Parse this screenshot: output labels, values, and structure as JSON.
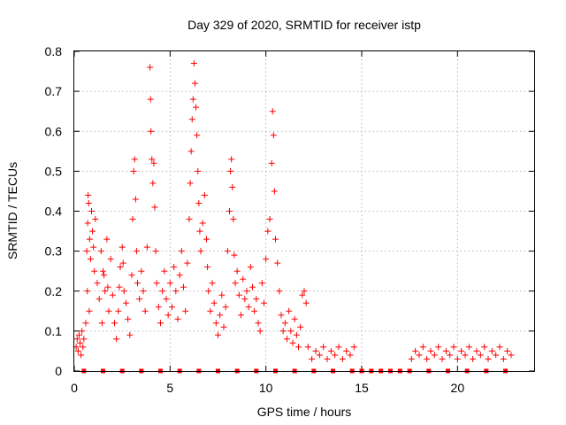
{
  "chart_data": {
    "type": "scatter",
    "title": "Day 329 of 2020, SRMTID for receiver istp",
    "xlabel": "GPS time / hours",
    "ylabel": "SRMTID / TECUs",
    "xlim": [
      0,
      24
    ],
    "ylim": [
      0,
      0.8
    ],
    "x_ticks": [
      0,
      5,
      10,
      15,
      20
    ],
    "x_tick_labels": [
      "0",
      "5",
      "10",
      "15",
      "20"
    ],
    "y_ticks": [
      0,
      0.1,
      0.2,
      0.3,
      0.4,
      0.5,
      0.6,
      0.7,
      0.8
    ],
    "y_tick_labels": [
      "0",
      "0.1",
      "0.2",
      "0.3",
      "0.4",
      "0.5",
      "0.6",
      "0.7",
      "0.8"
    ],
    "grid": true,
    "marker": "plus",
    "color": "#ff0000",
    "series": [
      {
        "name": "SRMTID",
        "points": [
          [
            0.1,
            0.06
          ],
          [
            0.15,
            0.08
          ],
          [
            0.2,
            0.05
          ],
          [
            0.25,
            0.09
          ],
          [
            0.3,
            0.07
          ],
          [
            0.35,
            0.04
          ],
          [
            0.4,
            0.1
          ],
          [
            0.45,
            0.06
          ],
          [
            0.5,
            0.08
          ],
          [
            0.6,
            0.12
          ],
          [
            0.65,
            0.3
          ],
          [
            0.7,
            0.37
          ],
          [
            0.72,
            0.44
          ],
          [
            0.75,
            0.42
          ],
          [
            0.8,
            0.33
          ],
          [
            0.85,
            0.28
          ],
          [
            0.9,
            0.4
          ],
          [
            0.95,
            0.35
          ],
          [
            1.0,
            0.31
          ],
          [
            1.05,
            0.25
          ],
          [
            1.1,
            0.38
          ],
          [
            0.68,
            0.2
          ],
          [
            0.78,
            0.15
          ],
          [
            1.2,
            0.22
          ],
          [
            1.3,
            0.18
          ],
          [
            1.4,
            0.3
          ],
          [
            1.5,
            0.25
          ],
          [
            1.6,
            0.2
          ],
          [
            1.7,
            0.33
          ],
          [
            1.8,
            0.15
          ],
          [
            1.9,
            0.28
          ],
          [
            2.0,
            0.19
          ],
          [
            1.45,
            0.12
          ],
          [
            1.55,
            0.24
          ],
          [
            1.75,
            0.21
          ],
          [
            2.1,
            0.12
          ],
          [
            2.2,
            0.08
          ],
          [
            2.3,
            0.15
          ],
          [
            2.4,
            0.26
          ],
          [
            2.5,
            0.31
          ],
          [
            2.6,
            0.2
          ],
          [
            2.7,
            0.17
          ],
          [
            2.8,
            0.13
          ],
          [
            2.9,
            0.09
          ],
          [
            2.35,
            0.21
          ],
          [
            2.55,
            0.27
          ],
          [
            3.0,
            0.24
          ],
          [
            3.05,
            0.38
          ],
          [
            3.1,
            0.5
          ],
          [
            3.15,
            0.53
          ],
          [
            3.2,
            0.43
          ],
          [
            3.25,
            0.3
          ],
          [
            3.3,
            0.22
          ],
          [
            3.4,
            0.18
          ],
          [
            3.5,
            0.25
          ],
          [
            3.6,
            0.2
          ],
          [
            3.7,
            0.15
          ],
          [
            3.8,
            0.31
          ],
          [
            3.95,
            0.76
          ],
          [
            3.98,
            0.68
          ],
          [
            4.0,
            0.6
          ],
          [
            4.05,
            0.53
          ],
          [
            4.1,
            0.47
          ],
          [
            4.15,
            0.52
          ],
          [
            4.2,
            0.41
          ],
          [
            4.25,
            0.3
          ],
          [
            4.3,
            0.22
          ],
          [
            4.4,
            0.16
          ],
          [
            4.5,
            0.12
          ],
          [
            4.6,
            0.2
          ],
          [
            4.7,
            0.25
          ],
          [
            4.8,
            0.18
          ],
          [
            4.9,
            0.14
          ],
          [
            5.0,
            0.22
          ],
          [
            5.1,
            0.16
          ],
          [
            5.2,
            0.26
          ],
          [
            5.3,
            0.2
          ],
          [
            5.4,
            0.13
          ],
          [
            5.5,
            0.24
          ],
          [
            5.6,
            0.3
          ],
          [
            5.7,
            0.21
          ],
          [
            5.8,
            0.15
          ],
          [
            5.9,
            0.27
          ],
          [
            6.0,
            0.38
          ],
          [
            6.05,
            0.47
          ],
          [
            6.1,
            0.55
          ],
          [
            6.15,
            0.63
          ],
          [
            6.2,
            0.68
          ],
          [
            6.25,
            0.77
          ],
          [
            6.3,
            0.72
          ],
          [
            6.35,
            0.66
          ],
          [
            6.4,
            0.59
          ],
          [
            6.45,
            0.5
          ],
          [
            6.5,
            0.42
          ],
          [
            6.55,
            0.35
          ],
          [
            6.6,
            0.3
          ],
          [
            6.7,
            0.37
          ],
          [
            6.8,
            0.44
          ],
          [
            6.9,
            0.33
          ],
          [
            6.95,
            0.26
          ],
          [
            7.0,
            0.2
          ],
          [
            7.1,
            0.15
          ],
          [
            7.2,
            0.22
          ],
          [
            7.3,
            0.17
          ],
          [
            7.4,
            0.12
          ],
          [
            7.5,
            0.09
          ],
          [
            7.6,
            0.14
          ],
          [
            7.7,
            0.19
          ],
          [
            7.8,
            0.11
          ],
          [
            7.9,
            0.16
          ],
          [
            8.0,
            0.3
          ],
          [
            8.1,
            0.4
          ],
          [
            8.15,
            0.5
          ],
          [
            8.2,
            0.53
          ],
          [
            8.25,
            0.46
          ],
          [
            8.3,
            0.38
          ],
          [
            8.35,
            0.29
          ],
          [
            8.4,
            0.22
          ],
          [
            8.5,
            0.25
          ],
          [
            8.6,
            0.19
          ],
          [
            8.7,
            0.14
          ],
          [
            8.8,
            0.23
          ],
          [
            8.9,
            0.18
          ],
          [
            9.0,
            0.2
          ],
          [
            9.1,
            0.16
          ],
          [
            9.2,
            0.26
          ],
          [
            9.3,
            0.21
          ],
          [
            9.4,
            0.15
          ],
          [
            9.5,
            0.18
          ],
          [
            9.6,
            0.12
          ],
          [
            9.7,
            0.1
          ],
          [
            9.8,
            0.22
          ],
          [
            9.9,
            0.17
          ],
          [
            10.0,
            0.28
          ],
          [
            10.1,
            0.35
          ],
          [
            10.2,
            0.38
          ],
          [
            10.3,
            0.52
          ],
          [
            10.35,
            0.65
          ],
          [
            10.4,
            0.59
          ],
          [
            10.45,
            0.45
          ],
          [
            10.5,
            0.33
          ],
          [
            10.6,
            0.27
          ],
          [
            10.7,
            0.2
          ],
          [
            10.8,
            0.14
          ],
          [
            10.9,
            0.1
          ],
          [
            11.0,
            0.12
          ],
          [
            11.1,
            0.08
          ],
          [
            11.2,
            0.15
          ],
          [
            11.3,
            0.1
          ],
          [
            11.4,
            0.07
          ],
          [
            11.5,
            0.13
          ],
          [
            11.6,
            0.09
          ],
          [
            11.7,
            0.06
          ],
          [
            11.8,
            0.11
          ],
          [
            11.9,
            0.19
          ],
          [
            12.0,
            0.2
          ],
          [
            12.1,
            0.17
          ],
          [
            12.2,
            0.06
          ],
          [
            12.4,
            0.03
          ],
          [
            12.6,
            0.05
          ],
          [
            12.8,
            0.04
          ],
          [
            13.0,
            0.06
          ],
          [
            13.2,
            0.03
          ],
          [
            13.4,
            0.05
          ],
          [
            13.6,
            0.04
          ],
          [
            13.8,
            0.06
          ],
          [
            14.0,
            0.03
          ],
          [
            14.2,
            0.05
          ],
          [
            14.4,
            0.04
          ],
          [
            14.6,
            0.06
          ],
          [
            17.6,
            0.03
          ],
          [
            17.8,
            0.05
          ],
          [
            18.0,
            0.04
          ],
          [
            18.2,
            0.06
          ],
          [
            18.4,
            0.03
          ],
          [
            18.6,
            0.05
          ],
          [
            18.8,
            0.04
          ],
          [
            19.0,
            0.06
          ],
          [
            19.2,
            0.03
          ],
          [
            19.4,
            0.05
          ],
          [
            19.6,
            0.04
          ],
          [
            19.8,
            0.06
          ],
          [
            20.0,
            0.03
          ],
          [
            20.2,
            0.05
          ],
          [
            20.4,
            0.04
          ],
          [
            20.6,
            0.06
          ],
          [
            20.8,
            0.03
          ],
          [
            21.0,
            0.05
          ],
          [
            21.2,
            0.04
          ],
          [
            21.4,
            0.06
          ],
          [
            21.6,
            0.03
          ],
          [
            21.8,
            0.05
          ],
          [
            22.0,
            0.04
          ],
          [
            22.2,
            0.06
          ],
          [
            22.4,
            0.03
          ],
          [
            22.6,
            0.05
          ],
          [
            22.8,
            0.04
          ]
        ]
      }
    ],
    "zero_markers_x": [
      0.5,
      1.5,
      2.5,
      3.5,
      4.5,
      5.5,
      6.5,
      7.5,
      8.5,
      9.5,
      10.5,
      11.5,
      12.5,
      13.5,
      14.5,
      15.0,
      15.5,
      16.0,
      16.5,
      17.0,
      17.5,
      18.5,
      19.5,
      20.5,
      21.5,
      22.5
    ]
  }
}
